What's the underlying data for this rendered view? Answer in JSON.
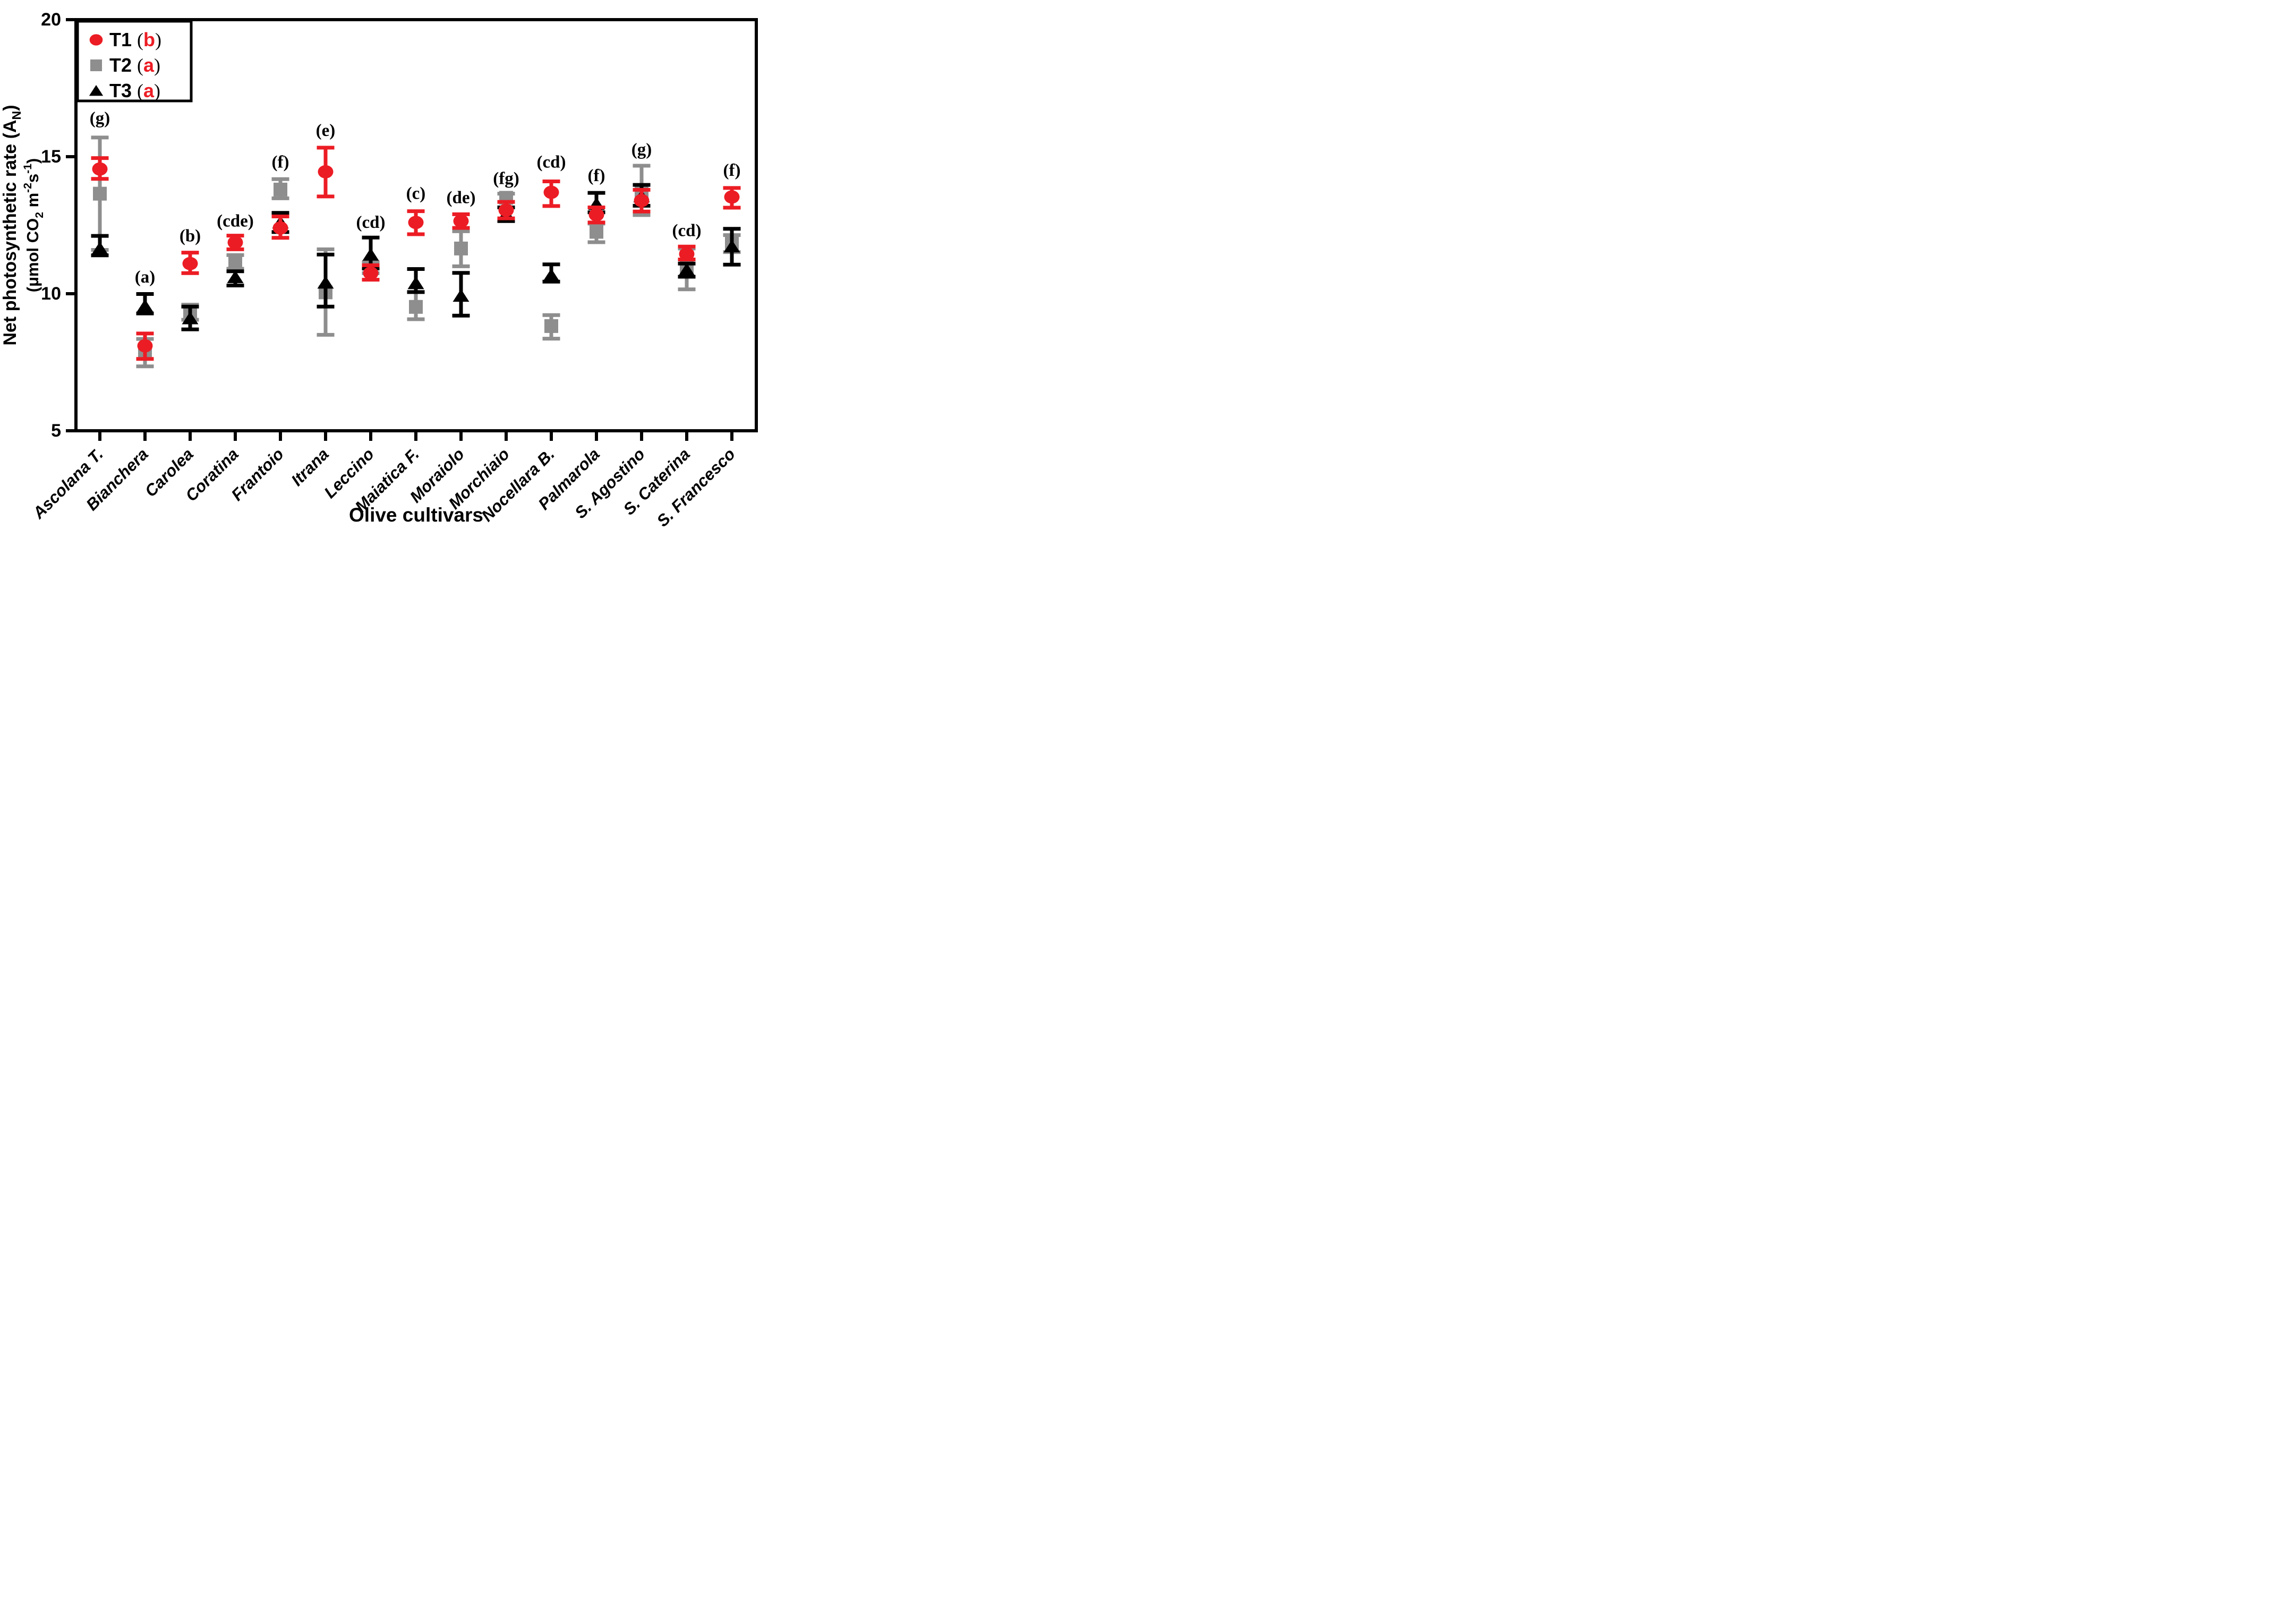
{
  "chart_data": {
    "type": "scatter",
    "title": "",
    "xlabel": "Olive cultivars",
    "ylabel_line1_parts": [
      {
        "t": "Net photosynthetic rate (A"
      },
      {
        "t": "N",
        "sub": true
      },
      {
        "t": ")"
      }
    ],
    "ylabel_line2_parts": [
      {
        "t": "(μmol CO"
      },
      {
        "t": "2",
        "sub": true
      },
      {
        "t": " m"
      },
      {
        "t": "-2",
        "sup": true
      },
      {
        "t": "s"
      },
      {
        "t": "-1",
        "sup": true
      },
      {
        "t": ")"
      }
    ],
    "ylim": [
      5,
      20
    ],
    "yticks": [
      5,
      10,
      15,
      20
    ],
    "grid": false,
    "legend_position": "top-left",
    "background_color": "#ffffff",
    "axis_color": "#000000",
    "legend_letter_color": "#ec1c24",
    "categories": [
      "Ascolana T.",
      "Bianchera",
      "Carolea",
      "Coratina",
      "Frantoio",
      "Itrana",
      "Leccino",
      "Maiatica F.",
      "Moraiolo",
      "Morchiaio",
      "Nocellara B.",
      "Palmarola",
      "S. Agostino",
      "S. Caterina",
      "S. Francesco"
    ],
    "draw_order": [
      "T2",
      "T3",
      "T1"
    ],
    "series": [
      {
        "name": "T1",
        "legend_letter": "b",
        "marker": "circle",
        "color": "#ec1c24",
        "values": [
          14.55,
          8.1,
          11.1,
          11.87,
          12.4,
          14.45,
          10.75,
          12.6,
          12.65,
          13.05,
          13.7,
          12.88,
          13.4,
          11.45,
          13.53
        ],
        "err_up": [
          0.4,
          0.45,
          0.4,
          0.25,
          0.42,
          0.88,
          0.29,
          0.41,
          0.25,
          0.3,
          0.4,
          0.27,
          0.39,
          0.27,
          0.33
        ],
        "err_down": [
          0.36,
          0.48,
          0.35,
          0.25,
          0.36,
          0.9,
          0.24,
          0.43,
          0.25,
          0.3,
          0.5,
          0.28,
          0.4,
          0.2,
          0.39
        ]
      },
      {
        "name": "T2",
        "legend_letter": "a",
        "marker": "square",
        "color": "#8e8e8e",
        "values": [
          13.65,
          7.9,
          9.35,
          11.16,
          13.8,
          10.05,
          10.95,
          9.52,
          11.65,
          13.5,
          8.82,
          12.26,
          13.75,
          10.93,
          11.83
        ],
        "err_up": [
          2.05,
          0.45,
          0.25,
          0.25,
          0.38,
          1.57,
          0.2,
          0.54,
          0.63,
          0.15,
          0.4,
          0.3,
          0.92,
          0.72,
          0.31
        ],
        "err_down": [
          2.05,
          0.55,
          0.3,
          0.25,
          0.32,
          1.55,
          0.2,
          0.45,
          0.65,
          0.15,
          0.46,
          0.38,
          0.88,
          0.77,
          0.31
        ]
      },
      {
        "name": "T3",
        "legend_letter": "a",
        "marker": "triangle",
        "color": "#000000",
        "values": [
          11.65,
          9.55,
          9.1,
          10.6,
          12.6,
          10.4,
          11.42,
          10.38,
          9.92,
          12.9,
          10.67,
          13.27,
          13.55,
          10.87,
          11.72
        ],
        "err_up": [
          0.46,
          0.44,
          0.43,
          0.22,
          0.35,
          1.03,
          0.63,
          0.52,
          0.84,
          0.25,
          0.4,
          0.41,
          0.42,
          0.23,
          0.65
        ],
        "err_down": [
          0.25,
          0.27,
          0.4,
          0.3,
          0.35,
          0.87,
          0.5,
          0.32,
          0.72,
          0.25,
          0.23,
          0.3,
          0.34,
          0.25,
          0.66
        ]
      }
    ],
    "annotations": [
      {
        "text": "(g)",
        "y": 16.4
      },
      {
        "text": "(a)",
        "y": 10.6
      },
      {
        "text": "(b)",
        "y": 12.1
      },
      {
        "text": "(cde)",
        "y": 12.65
      },
      {
        "text": "(f)",
        "y": 14.8
      },
      {
        "text": "(e)",
        "y": 15.95
      },
      {
        "text": "(cd)",
        "y": 12.6
      },
      {
        "text": "(c)",
        "y": 13.65
      },
      {
        "text": "(de)",
        "y": 13.5
      },
      {
        "text": "(fg)",
        "y": 14.2
      },
      {
        "text": "(cd)",
        "y": 14.8
      },
      {
        "text": "(f)",
        "y": 14.3
      },
      {
        "text": "(g)",
        "y": 15.25
      },
      {
        "text": "(cd)",
        "y": 12.3
      },
      {
        "text": "(f)",
        "y": 14.5
      }
    ]
  }
}
